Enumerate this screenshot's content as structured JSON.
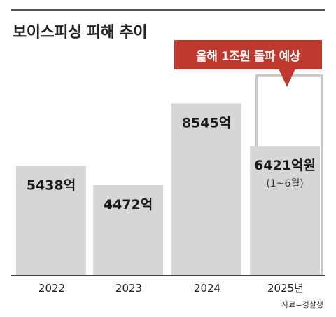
{
  "title": "보이스피싱 피해 추이",
  "callout": "올해 1조원 돌파 예상",
  "source": "자료=경찰청",
  "colors": {
    "bar": "#d6d6d6",
    "projection_outline": "#c8c8c8",
    "callout": "#c0392f",
    "baseline": "#444444"
  },
  "chart_data": {
    "type": "bar",
    "title": "보이스피싱 피해 추이",
    "categories": [
      "2022",
      "2023",
      "2024",
      "2025년"
    ],
    "values": [
      5438,
      4472,
      8545,
      6421
    ],
    "value_labels": [
      "5438억",
      "4472억",
      "8545억",
      "6421억원"
    ],
    "value_sublabels": [
      "",
      "",
      "",
      "(1~6월)"
    ],
    "projection": {
      "category": "2025년",
      "value": 10000,
      "label": "올해 1조원 돌파 예상"
    },
    "ylim": [
      0,
      10000
    ],
    "grid": false,
    "xlabel": "",
    "ylabel": ""
  }
}
